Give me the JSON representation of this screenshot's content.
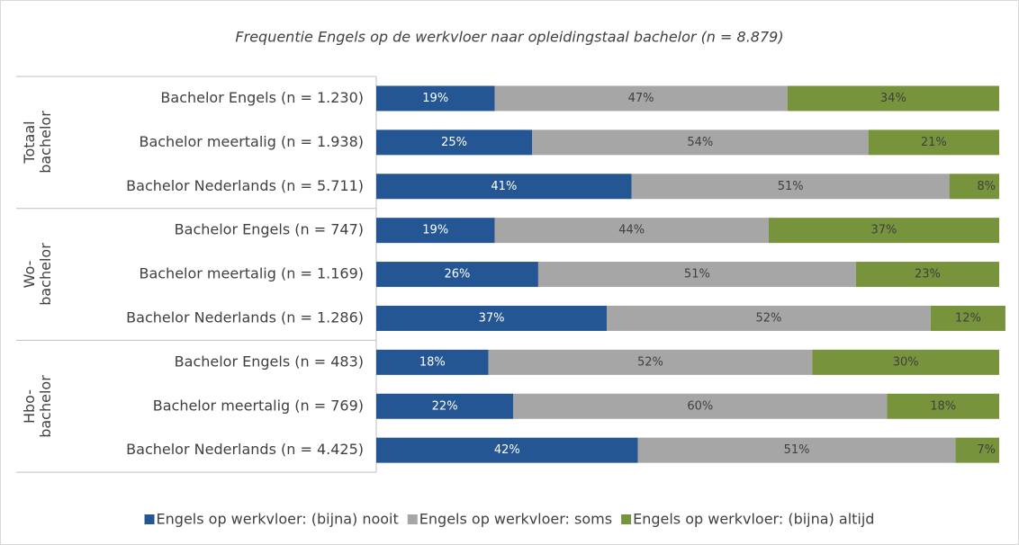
{
  "chart_data": {
    "type": "stacked_bar_horizontal",
    "title": "Frequentie Engels op de werkvloer naar opleidingstaal bachelor (n = 8.879)",
    "categories": [
      "Bachelor Engels (n = 1.230)",
      "Bachelor meertalig (n = 1.938)",
      "Bachelor Nederlands (n = 5.711)",
      "Bachelor Engels (n = 747)",
      "Bachelor meertalig (n = 1.169)",
      "Bachelor Nederlands (n = 1.286)",
      "Bachelor Engels (n = 483)",
      "Bachelor meertalig (n = 769)",
      "Bachelor Nederlands (n = 4.425)"
    ],
    "groups": [
      {
        "label": "Totaal bachelor",
        "size": 3
      },
      {
        "label": "Wo-bachelor",
        "size": 3
      },
      {
        "label": "Hbo-bachelor",
        "size": 3
      }
    ],
    "xlim": [
      0,
      100
    ],
    "legend": "bottom",
    "series": [
      {
        "name": "Engels op werkvloer: (bijna) nooit",
        "color": "#255694",
        "values": [
          19,
          25,
          41,
          19,
          26,
          37,
          18,
          22,
          42
        ],
        "value_labels": [
          "19%",
          "25%",
          "41%",
          "19%",
          "26%",
          "37%",
          "18%",
          "22%",
          "42%"
        ]
      },
      {
        "name": "Engels op werkvloer: soms",
        "color": "#a6a6a6",
        "values": [
          47,
          54,
          51,
          44,
          51,
          52,
          52,
          60,
          51
        ],
        "value_labels": [
          "47%",
          "54%",
          "51%",
          "44%",
          "51%",
          "52%",
          "52%",
          "60%",
          "51%"
        ]
      },
      {
        "name": "Engels op werkvloer: (bijna) altijd",
        "color": "#77933c",
        "values": [
          34,
          21,
          8,
          37,
          23,
          12,
          30,
          18,
          7
        ],
        "value_labels": [
          "34%",
          "21%",
          "8%",
          "37%",
          "23%",
          "12%",
          "30%",
          "18%",
          "7%"
        ]
      }
    ]
  }
}
